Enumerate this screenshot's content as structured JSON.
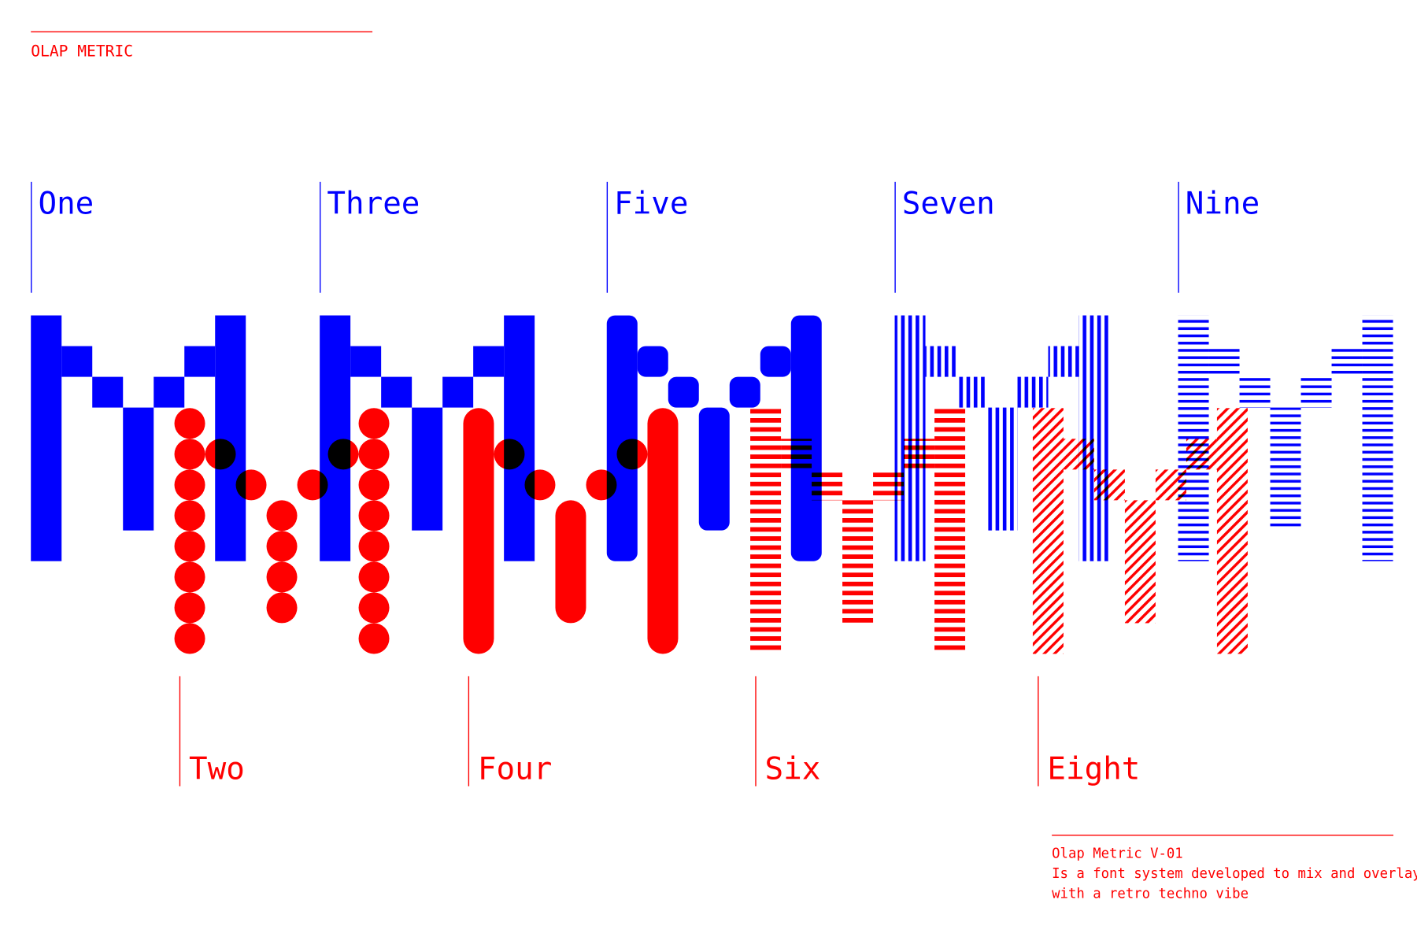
{
  "header": {
    "title": "OLAP METRIC"
  },
  "top_labels": [
    "One",
    "Three",
    "Five",
    "Seven",
    "Nine"
  ],
  "bottom_labels": [
    "Two",
    "Four",
    "Six",
    "Eight"
  ],
  "footer": {
    "name": "Olap Metric V-01",
    "lines": [
      "Is a font system developed to mix and overlay",
      "with a retro techno vibe"
    ]
  }
}
